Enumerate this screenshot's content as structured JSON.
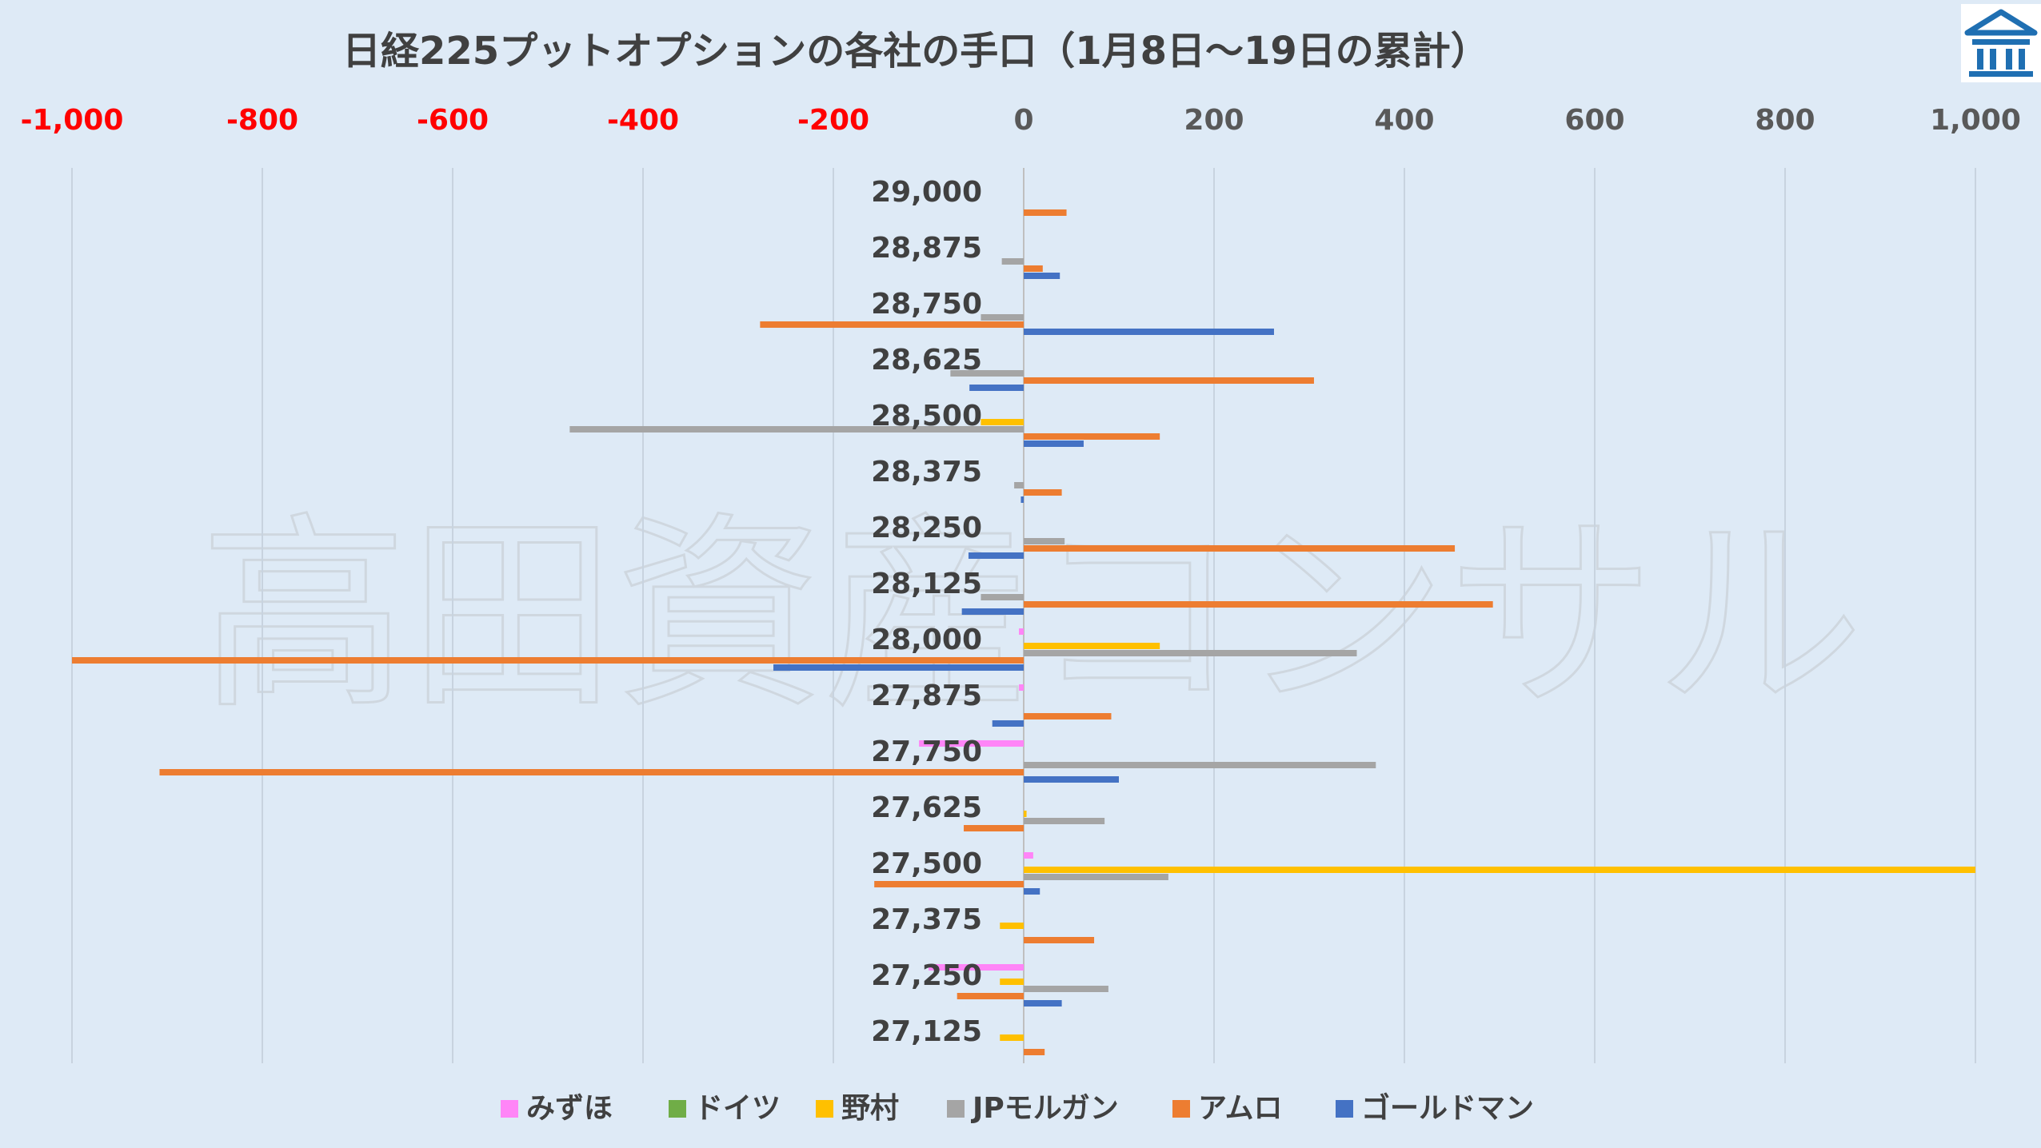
{
  "chart_data": {
    "type": "bar",
    "orientation": "horizontal",
    "title": "日経225プットオプションの各社の手口（1月8日～19日の累計）",
    "watermark": "高田資産コンサル",
    "logo_icon": "bank-building-icon",
    "xlim": [
      -1000,
      1000
    ],
    "x_ticks": [
      -1000,
      -800,
      -600,
      -400,
      -200,
      0,
      200,
      400,
      600,
      800,
      1000
    ],
    "x_tick_labels": [
      "-1,000",
      "-800",
      "-600",
      "-400",
      "-200",
      "0",
      "200",
      "400",
      "600",
      "800",
      "1,000"
    ],
    "negative_tick_color": "#ff0000",
    "positive_tick_color": "#595959",
    "legend_position": "bottom",
    "grid": "vertical",
    "categories": [
      "29,000",
      "28,875",
      "28,750",
      "28,625",
      "28,500",
      "28,375",
      "28,250",
      "28,125",
      "28,000",
      "27,875",
      "27,750",
      "27,625",
      "27,500",
      "27,375",
      "27,250",
      "27,125"
    ],
    "series": [
      {
        "name": "みずほ",
        "color": "#ff85f7",
        "values": [
          0,
          0,
          0,
          0,
          0,
          0,
          0,
          0,
          -5,
          -5,
          -110,
          0,
          10,
          0,
          -100,
          0
        ]
      },
      {
        "name": "ドイツ",
        "color": "#70ad47",
        "values": [
          0,
          0,
          0,
          0,
          0,
          0,
          0,
          0,
          0,
          0,
          0,
          0,
          0,
          0,
          0,
          0
        ]
      },
      {
        "name": "野村",
        "color": "#ffc000",
        "values": [
          0,
          0,
          0,
          0,
          -45,
          0,
          0,
          0,
          143,
          0,
          0,
          3,
          1000,
          -25,
          -25,
          -25
        ]
      },
      {
        "name": "JPモルガン",
        "color": "#a5a5a5",
        "values": [
          0,
          -23,
          -45,
          -77,
          -477,
          -10,
          43,
          -45,
          350,
          0,
          370,
          85,
          152,
          0,
          89,
          0
        ]
      },
      {
        "name": "アムロ",
        "color": "#ed7d31",
        "values": [
          45,
          20,
          -277,
          305,
          143,
          40,
          453,
          493,
          -1000,
          92,
          -908,
          -63,
          -157,
          74,
          -70,
          22
        ]
      },
      {
        "name": "ゴールドマン",
        "color": "#4472c4",
        "values": [
          0,
          38,
          263,
          -57,
          63,
          -3,
          -58,
          -65,
          -263,
          -33,
          100,
          0,
          17,
          0,
          40,
          0
        ]
      }
    ]
  }
}
